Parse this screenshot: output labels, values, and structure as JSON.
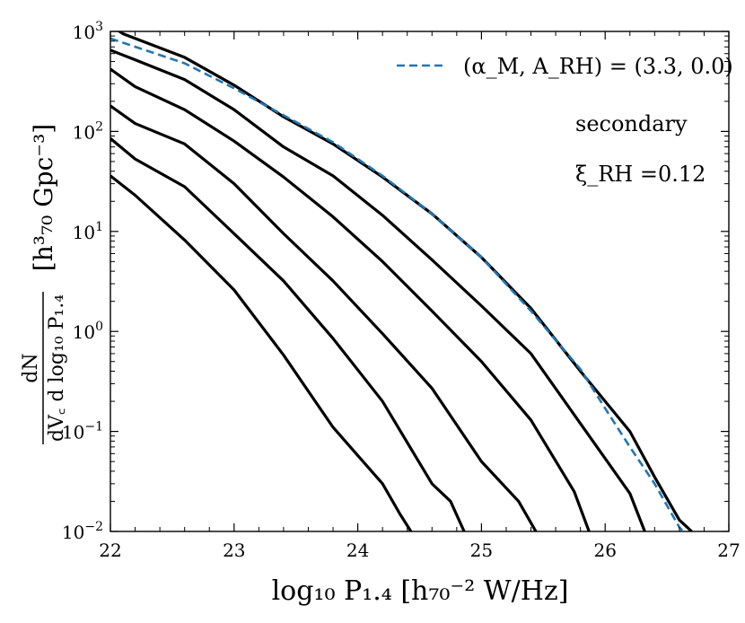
{
  "chart_data": {
    "type": "line",
    "xlabel": "log₁₀ P₁.₄ [h₇₀⁻² W/Hz]",
    "ylabel_fraction_numerator": "dN",
    "ylabel_fraction_denominator": "dV꜀ d log₁₀ P₁.₄",
    "ylabel_units": "[h³₇₀ Gpc⁻³]",
    "xlim": [
      22,
      27
    ],
    "ylim": [
      0.01,
      1000
    ],
    "yscale": "log",
    "x_ticks": [
      22,
      23,
      24,
      25,
      26,
      27
    ],
    "x_tick_labels": [
      "22",
      "23",
      "24",
      "25",
      "26",
      "27"
    ],
    "y_ticks": [
      {
        "value": 1000,
        "base": "10",
        "exp": "3"
      },
      {
        "value": 100,
        "base": "10",
        "exp": "2"
      },
      {
        "value": 10,
        "base": "10",
        "exp": "1"
      },
      {
        "value": 1,
        "base": "10",
        "exp": "0"
      },
      {
        "value": 0.1,
        "base": "10",
        "exp": "−1"
      },
      {
        "value": 0.01,
        "base": "10",
        "exp": "−2"
      }
    ],
    "legend": {
      "label": "(α_M, A_RH) = (3.3, 0.0)",
      "placement": "top-right"
    },
    "annotations": [
      {
        "text": "secondary"
      },
      {
        "text": "ξ_RH =0.12"
      }
    ],
    "series": [
      {
        "name": "curve-1",
        "color": "#000000",
        "style": "solid",
        "x": [
          22.0,
          22.1,
          22.6,
          23.0,
          23.4,
          23.8,
          24.2,
          24.6,
          25.0,
          25.4,
          25.8,
          26.2,
          26.4,
          26.6,
          26.7
        ],
        "y": [
          1150,
          950,
          550,
          290,
          140,
          75,
          35,
          15,
          5.5,
          1.7,
          0.4,
          0.1,
          0.035,
          0.013,
          0.01
        ]
      },
      {
        "name": "curve-2",
        "color": "#000000",
        "style": "solid",
        "x": [
          22.0,
          22.2,
          22.6,
          23.0,
          23.4,
          23.8,
          24.2,
          24.6,
          25.0,
          25.4,
          25.8,
          26.2,
          26.32
        ],
        "y": [
          650,
          520,
          330,
          165,
          70,
          36,
          14.5,
          5.2,
          1.8,
          0.6,
          0.12,
          0.024,
          0.01
        ]
      },
      {
        "name": "curve-3",
        "color": "#000000",
        "style": "solid",
        "x": [
          22.0,
          22.2,
          22.6,
          23.0,
          23.4,
          23.8,
          24.2,
          24.6,
          25.0,
          25.4,
          25.75,
          25.87
        ],
        "y": [
          420,
          280,
          165,
          80,
          35,
          14,
          5.0,
          1.6,
          0.5,
          0.13,
          0.025,
          0.01
        ]
      },
      {
        "name": "curve-4",
        "color": "#000000",
        "style": "solid",
        "x": [
          22.0,
          22.2,
          22.6,
          23.0,
          23.4,
          23.8,
          24.2,
          24.6,
          25.0,
          25.3,
          25.44
        ],
        "y": [
          180,
          120,
          75,
          30,
          9.5,
          3.2,
          0.95,
          0.27,
          0.05,
          0.02,
          0.01
        ]
      },
      {
        "name": "curve-5",
        "color": "#000000",
        "style": "solid",
        "x": [
          22.0,
          22.2,
          22.6,
          23.0,
          23.4,
          23.8,
          24.2,
          24.6,
          24.75,
          24.86
        ],
        "y": [
          85,
          53,
          28,
          9.5,
          3.2,
          0.85,
          0.2,
          0.03,
          0.02,
          0.01
        ]
      },
      {
        "name": "curve-6",
        "color": "#000000",
        "style": "solid",
        "x": [
          22.0,
          22.2,
          22.6,
          23.0,
          23.4,
          23.8,
          24.2,
          24.34,
          24.43
        ],
        "y": [
          36,
          23,
          8.2,
          2.6,
          0.58,
          0.11,
          0.03,
          0.015,
          0.01
        ]
      },
      {
        "name": "model-dashed",
        "color": "#1f77b4",
        "style": "dashed",
        "x": [
          22.0,
          22.6,
          23.0,
          23.8,
          24.2,
          24.6,
          25.0,
          25.4,
          25.8,
          26.0,
          26.2,
          26.4,
          26.6,
          26.63
        ],
        "y": [
          850,
          480,
          270,
          78,
          36,
          15,
          5.5,
          1.6,
          0.42,
          0.17,
          0.07,
          0.03,
          0.011,
          0.01
        ]
      }
    ]
  }
}
